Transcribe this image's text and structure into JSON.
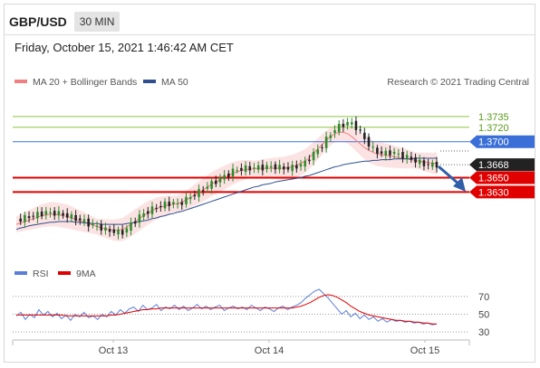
{
  "header": {
    "pair": "GBP/USD",
    "timeframe": "30 MIN"
  },
  "timestamp": "Friday, October 15, 2021 1:46:42 AM CET",
  "legend": {
    "ma_bollinger": "MA 20 + Bollinger Bands",
    "ma50": "MA 50",
    "credit": "Research © 2021 Trading Central",
    "rsi": "RSI",
    "rsi_ma": "9MA"
  },
  "colors": {
    "bollinger": "#f08080",
    "ma50": "#2f4f8f",
    "resistance": "#8cc63f",
    "pivot": "#3a6fd8",
    "support": "#e00000",
    "candle_up": "#2e8b2e",
    "candle_down": "#222222",
    "rsi": "#5b7fd8",
    "rsi_ma": "#e00000"
  },
  "chart_data": [
    {
      "type": "candlestick",
      "title": "GBP/USD",
      "interval": "30 MIN",
      "ylim": [
        1.3555,
        1.3765
      ],
      "x_ticks": [
        "Oct 13",
        "Oct 14",
        "Oct 15"
      ],
      "levels": [
        {
          "value": 1.3735,
          "label": "1.3735",
          "kind": "resistance"
        },
        {
          "value": 1.372,
          "label": "1.3720",
          "kind": "resistance"
        },
        {
          "value": 1.37,
          "label": "1.3700",
          "kind": "pivot"
        },
        {
          "value": 1.365,
          "label": "1.3650",
          "kind": "support"
        },
        {
          "value": 1.363,
          "label": "1.3630",
          "kind": "support"
        }
      ],
      "last_price": "1.3668",
      "close_series": [
        1.359,
        1.3592,
        1.3594,
        1.3596,
        1.3597,
        1.3599,
        1.36,
        1.3602,
        1.36,
        1.3601,
        1.36,
        1.3598,
        1.3597,
        1.3595,
        1.3593,
        1.3591,
        1.3589,
        1.3586,
        1.3584,
        1.3582,
        1.358,
        1.3577,
        1.3576,
        1.3575,
        1.3574,
        1.3574,
        1.3579,
        1.3585,
        1.359,
        1.3596,
        1.36,
        1.3603,
        1.3606,
        1.3609,
        1.3611,
        1.3613,
        1.3614,
        1.3615,
        1.3612,
        1.3616,
        1.362,
        1.3623,
        1.3627,
        1.363,
        1.3634,
        1.3638,
        1.3642,
        1.3645,
        1.3649,
        1.3652,
        1.3655,
        1.3659,
        1.3661,
        1.3662,
        1.3663,
        1.3663,
        1.3664,
        1.3664,
        1.3664,
        1.3665,
        1.3665,
        1.3665,
        1.3664,
        1.3663,
        1.3663,
        1.3664,
        1.3666,
        1.3668,
        1.3671,
        1.3677,
        1.3683,
        1.3689,
        1.3695,
        1.3703,
        1.3711,
        1.3717,
        1.3721,
        1.3724,
        1.3726,
        1.3725,
        1.372,
        1.3712,
        1.3704,
        1.3696,
        1.3689,
        1.3686,
        1.3684,
        1.3684,
        1.3685,
        1.3684,
        1.3682,
        1.368,
        1.3678,
        1.3676,
        1.3673,
        1.3671,
        1.3669,
        1.3668,
        1.3668,
        1.3668
      ],
      "ma20": [
        1.3585,
        1.3587,
        1.3589,
        1.3591,
        1.3593,
        1.3595,
        1.3597,
        1.3598,
        1.3599,
        1.3599,
        1.3598,
        1.3597,
        1.3596,
        1.3594,
        1.3592,
        1.359,
        1.3588,
        1.3586,
        1.3584,
        1.3582,
        1.358,
        1.3579,
        1.3578,
        1.3577,
        1.3577,
        1.3578,
        1.3581,
        1.3585,
        1.3589,
        1.3593,
        1.3597,
        1.3601,
        1.3604,
        1.3607,
        1.3609,
        1.3611,
        1.3612,
        1.3613,
        1.3614,
        1.3616,
        1.3619,
        1.3622,
        1.3626,
        1.3629,
        1.3633,
        1.3637,
        1.3641,
        1.3644,
        1.3647,
        1.365,
        1.3653,
        1.3656,
        1.3658,
        1.366,
        1.3661,
        1.3662,
        1.3662,
        1.3663,
        1.3663,
        1.3663,
        1.3663,
        1.3663,
        1.3663,
        1.3663,
        1.3664,
        1.3665,
        1.3667,
        1.367,
        1.3673,
        1.3678,
        1.3684,
        1.369,
        1.3696,
        1.3702,
        1.3707,
        1.3711,
        1.3713,
        1.3713,
        1.3711,
        1.3707,
        1.3702,
        1.3697,
        1.3692,
        1.3688,
        1.3685,
        1.3683,
        1.3682,
        1.3681,
        1.368,
        1.3679,
        1.3678,
        1.3677,
        1.3676,
        1.3675,
        1.3674,
        1.3673,
        1.3672,
        1.3671,
        1.367,
        1.367
      ],
      "ma50": [
        1.3578,
        1.358,
        1.3581,
        1.3583,
        1.3584,
        1.3585,
        1.3586,
        1.3587,
        1.3588,
        1.3588,
        1.3589,
        1.3589,
        1.3589,
        1.3589,
        1.3588,
        1.3588,
        1.3587,
        1.3587,
        1.3586,
        1.3586,
        1.3585,
        1.3585,
        1.3585,
        1.3585,
        1.3585,
        1.3585,
        1.3586,
        1.3587,
        1.3588,
        1.3589,
        1.359,
        1.3591,
        1.3593,
        1.3594,
        1.3596,
        1.3597,
        1.3599,
        1.36,
        1.3602,
        1.3603,
        1.3605,
        1.3607,
        1.3609,
        1.3611,
        1.3613,
        1.3615,
        1.3617,
        1.3619,
        1.3621,
        1.3623,
        1.3625,
        1.3627,
        1.3629,
        1.3631,
        1.3633,
        1.3635,
        1.3637,
        1.3638,
        1.364,
        1.3641,
        1.3642,
        1.3644,
        1.3645,
        1.3646,
        1.3647,
        1.3648,
        1.3649,
        1.365,
        1.3652,
        1.3653,
        1.3655,
        1.3657,
        1.3659,
        1.3661,
        1.3663,
        1.3665,
        1.3666,
        1.3668,
        1.3669,
        1.367,
        1.3671,
        1.3672,
        1.3673,
        1.3673,
        1.3674,
        1.3674,
        1.3675,
        1.3675,
        1.3675,
        1.3676,
        1.3676,
        1.3676,
        1.3676,
        1.3676,
        1.3677,
        1.3677,
        1.3677,
        1.3677,
        1.3677,
        1.3677
      ]
    },
    {
      "type": "line",
      "title": "RSI",
      "ylim": [
        25,
        80
      ],
      "y_ticks": [
        70,
        50,
        30
      ],
      "series": [
        {
          "name": "RSI",
          "values": [
            48,
            52,
            44,
            50,
            46,
            55,
            49,
            53,
            47,
            51,
            45,
            49,
            43,
            50,
            47,
            52,
            46,
            48,
            44,
            50,
            47,
            53,
            49,
            55,
            51,
            56,
            58,
            53,
            60,
            55,
            57,
            61,
            54,
            58,
            56,
            60,
            55,
            59,
            54,
            57,
            61,
            56,
            59,
            55,
            58,
            60,
            54,
            57,
            59,
            56,
            58,
            55,
            60,
            57,
            54,
            58,
            56,
            53,
            57,
            59,
            55,
            58,
            60,
            63,
            68,
            72,
            76,
            78,
            73,
            68,
            62,
            56,
            50,
            54,
            47,
            51,
            45,
            49,
            44,
            47,
            42,
            45,
            41,
            44,
            42,
            43,
            41,
            42,
            40,
            41,
            39,
            40,
            38,
            39
          ]
        },
        {
          "name": "9MA",
          "values": [
            49,
            49,
            49,
            49,
            49,
            49,
            49,
            49,
            49,
            49,
            49,
            48,
            48,
            48,
            48,
            48,
            48,
            48,
            48,
            48,
            48,
            49,
            49,
            50,
            51,
            52,
            53,
            54,
            55,
            55,
            56,
            56,
            57,
            57,
            57,
            57,
            57,
            57,
            57,
            57,
            57,
            57,
            57,
            57,
            57,
            57,
            57,
            57,
            57,
            57,
            57,
            57,
            57,
            57,
            57,
            57,
            57,
            57,
            57,
            57,
            57,
            57,
            58,
            59,
            61,
            63,
            66,
            69,
            71,
            72,
            71,
            69,
            66,
            63,
            59,
            56,
            53,
            51,
            49,
            48,
            47,
            46,
            45,
            44,
            43,
            43,
            42,
            42,
            41,
            41,
            40,
            40,
            39,
            39
          ]
        }
      ]
    }
  ]
}
